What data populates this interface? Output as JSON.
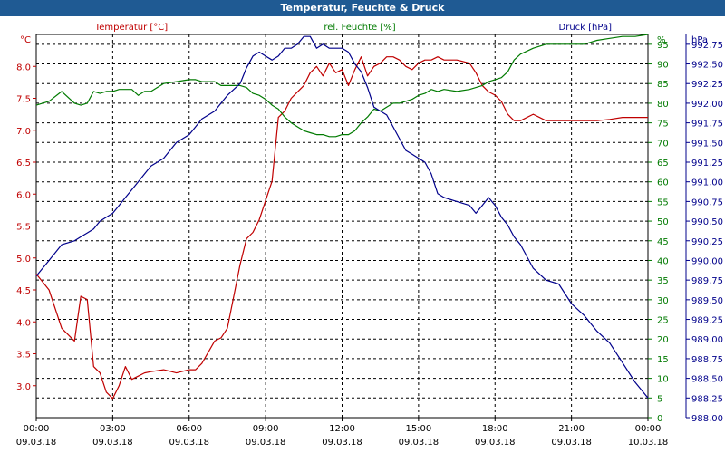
{
  "window": {
    "title": "Temperatur, Feuchte & Druck"
  },
  "chart_data": {
    "type": "line",
    "title": "Temperatur, Feuchte & Druck",
    "grid": true,
    "x_ticks": [
      {
        "time": "00:00",
        "date": "09.03.18"
      },
      {
        "time": "03:00",
        "date": "09.03.18"
      },
      {
        "time": "06:00",
        "date": "09.03.18"
      },
      {
        "time": "09:00",
        "date": "09.03.18"
      },
      {
        "time": "12:00",
        "date": "09.03.18"
      },
      {
        "time": "15:00",
        "date": "09.03.18"
      },
      {
        "time": "18:00",
        "date": "09.03.18"
      },
      {
        "time": "21:00",
        "date": "09.03.18"
      },
      {
        "time": "00:00",
        "date": "10.03.18"
      }
    ],
    "x_hours": [
      0,
      0.5,
      1,
      1.5,
      1.75,
      2,
      2.25,
      2.5,
      2.75,
      3,
      3.25,
      3.5,
      3.75,
      4,
      4.25,
      4.5,
      5,
      5.5,
      6,
      6.25,
      6.5,
      7,
      7.25,
      7.5,
      8,
      8.25,
      8.5,
      8.75,
      9,
      9.25,
      9.5,
      9.75,
      10,
      10.25,
      10.5,
      10.75,
      11,
      11.25,
      11.5,
      11.75,
      12,
      12.25,
      12.5,
      12.75,
      13,
      13.25,
      13.5,
      13.75,
      14,
      14.25,
      14.5,
      14.75,
      15,
      15.25,
      15.5,
      15.75,
      16,
      16.5,
      17,
      17.25,
      17.5,
      17.75,
      18,
      18.25,
      18.5,
      18.75,
      19,
      19.5,
      20,
      20.5,
      21,
      21.5,
      22,
      22.5,
      23,
      23.5,
      24
    ],
    "axes": {
      "left": {
        "unit_label": "°C",
        "ticks": [
          "8.0",
          "7.5",
          "7.0",
          "6.5",
          "6.0",
          "5.5",
          "5.0",
          "4.5",
          "4.0",
          "3.5",
          "3.0"
        ],
        "ylim": [
          2.5,
          8.5
        ],
        "color": "#c00000"
      },
      "right1": {
        "ticks": [
          "95",
          "90",
          "85",
          "80",
          "75",
          "70",
          "65",
          "60",
          "55",
          "50",
          "45",
          "40",
          "35",
          "30",
          "25",
          "20",
          "15",
          "10",
          "5",
          "0"
        ],
        "ylim": [
          0,
          97.5
        ],
        "color": "#007a00"
      },
      "right2": {
        "unit_label": "hPa",
        "ticks": [
          "992,75",
          "992,50",
          "992,25",
          "992,00",
          "991,75",
          "991,50",
          "991,25",
          "991,00",
          "990,75",
          "990,50",
          "990,25",
          "990,00",
          "989,75",
          "989,50",
          "989,25",
          "989,00",
          "988,75",
          "988,50",
          "988,25",
          "988,00"
        ],
        "ylim": [
          988.0,
          992.875
        ],
        "color": "#00008b"
      }
    },
    "series": [
      {
        "name": "Temperatur [°C]",
        "color": "#c00000",
        "axis": "left",
        "values": [
          4.75,
          4.5,
          3.9,
          3.7,
          4.4,
          4.35,
          3.3,
          3.2,
          2.9,
          2.8,
          3.0,
          3.3,
          3.1,
          3.15,
          3.2,
          3.22,
          3.25,
          3.2,
          3.25,
          3.25,
          3.35,
          3.7,
          3.75,
          3.9,
          4.9,
          5.3,
          5.4,
          5.6,
          5.9,
          6.2,
          7.2,
          7.3,
          7.5,
          7.6,
          7.7,
          7.9,
          8.0,
          7.85,
          8.05,
          7.9,
          7.95,
          7.7,
          7.95,
          8.15,
          7.85,
          8.0,
          8.05,
          8.15,
          8.15,
          8.1,
          8.0,
          7.95,
          8.05,
          8.1,
          8.1,
          8.15,
          8.1,
          8.1,
          8.05,
          7.9,
          7.7,
          7.6,
          7.55,
          7.45,
          7.25,
          7.15,
          7.15,
          7.25,
          7.15,
          7.15,
          7.15,
          7.15,
          7.15,
          7.17,
          7.2,
          7.2,
          7.2
        ]
      },
      {
        "name": "rel. Feuchte [%]",
        "color": "#007a00",
        "axis": "right1",
        "values": [
          79.5,
          80.5,
          83,
          80,
          79.5,
          80,
          83,
          82.5,
          83,
          83,
          83.5,
          83.5,
          83.5,
          82,
          83,
          83,
          85,
          85.5,
          86,
          86,
          85.5,
          85.5,
          84.5,
          84.5,
          84.5,
          84,
          82.5,
          82,
          81,
          79.5,
          78.5,
          76.5,
          75,
          74,
          73,
          72.5,
          72,
          72,
          71.5,
          71.5,
          72,
          72,
          73,
          75,
          76.5,
          78.5,
          78,
          79,
          80,
          80,
          80.5,
          81,
          82,
          82.5,
          83.5,
          83,
          83.5,
          83,
          83.5,
          84,
          84.5,
          85.5,
          86,
          86.5,
          88,
          91,
          92.5,
          94,
          95,
          95,
          95,
          95,
          96,
          96.5,
          97,
          97,
          97.5
        ]
      },
      {
        "name": "Druck [hPa]",
        "color": "#00008b",
        "axis": "right2",
        "values": [
          989.8,
          990.0,
          990.2,
          990.25,
          990.3,
          990.35,
          990.4,
          990.5,
          990.55,
          990.6,
          990.7,
          990.8,
          990.9,
          991.0,
          991.1,
          991.2,
          991.3,
          991.5,
          991.6,
          991.7,
          991.8,
          991.9,
          992.0,
          992.1,
          992.25,
          992.45,
          992.6,
          992.65,
          992.6,
          992.55,
          992.6,
          992.7,
          992.7,
          992.75,
          992.85,
          992.85,
          992.7,
          992.75,
          992.7,
          992.7,
          992.7,
          992.65,
          992.5,
          992.4,
          992.2,
          991.95,
          991.9,
          991.85,
          991.7,
          991.55,
          991.4,
          991.35,
          991.3,
          991.25,
          991.1,
          990.85,
          990.8,
          990.75,
          990.7,
          990.6,
          990.7,
          990.8,
          990.7,
          990.55,
          990.45,
          990.3,
          990.2,
          989.9,
          989.75,
          989.7,
          989.45,
          989.3,
          989.1,
          988.95,
          988.7,
          988.45,
          988.25
        ]
      }
    ]
  }
}
